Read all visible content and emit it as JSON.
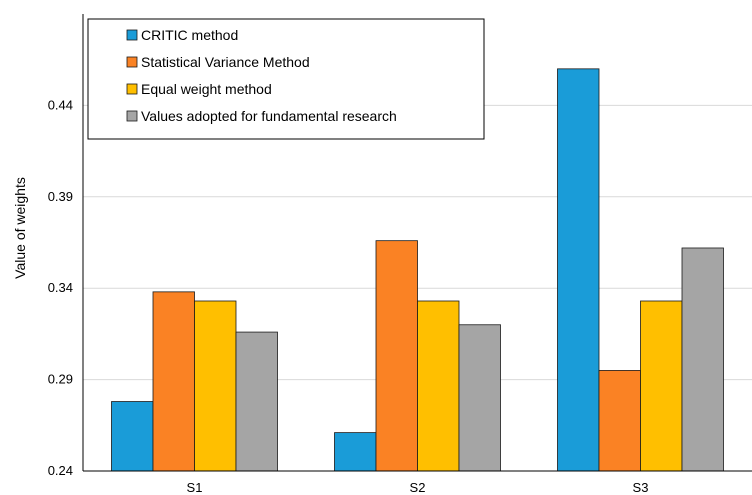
{
  "chart_data": {
    "type": "bar",
    "ylabel": "Value of weights",
    "xlabel": "",
    "ylim": [
      0.24,
      0.49
    ],
    "yticks": [
      0.24,
      0.29,
      0.34,
      0.39,
      0.44
    ],
    "grid": true,
    "legend_position": "top-left",
    "categories": [
      "S1",
      "S2",
      "S3"
    ],
    "series": [
      {
        "name": "CRITIC method",
        "values": [
          0.278,
          0.261,
          0.46
        ],
        "color": "#1a9cd8"
      },
      {
        "name": "Statistical Variance Method",
        "values": [
          0.338,
          0.366,
          0.295
        ],
        "color": "#fa8224"
      },
      {
        "name": "Equal weight method",
        "values": [
          0.333,
          0.333,
          0.333
        ],
        "color": "#ffbf00"
      },
      {
        "name": "Values adopted for fundamental research",
        "values": [
          0.316,
          0.32,
          0.362
        ],
        "color": "#a5a5a5"
      }
    ]
  }
}
